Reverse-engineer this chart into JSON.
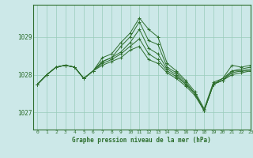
{
  "title": "Graphe pression niveau de la mer (hPa)",
  "bg_color": "#cce8e8",
  "grid_color": "#99ccbb",
  "line_color": "#2d6e2d",
  "xlim": [
    -0.5,
    23
  ],
  "ylim": [
    1026.55,
    1029.85
  ],
  "yticks": [
    1027,
    1028,
    1029
  ],
  "xticks": [
    0,
    1,
    2,
    3,
    4,
    5,
    6,
    7,
    8,
    9,
    10,
    11,
    12,
    13,
    14,
    15,
    16,
    17,
    18,
    19,
    20,
    21,
    22,
    23
  ],
  "series": [
    [
      1027.75,
      1028.0,
      1028.2,
      1028.25,
      1028.2,
      1027.9,
      1028.1,
      1028.45,
      1028.55,
      1028.85,
      1029.1,
      1029.5,
      1029.2,
      1029.0,
      1028.3,
      1028.1,
      1027.85,
      1027.55,
      1027.1,
      1027.8,
      1027.9,
      1028.25,
      1028.2,
      1028.25
    ],
    [
      1027.75,
      1028.0,
      1028.2,
      1028.25,
      1028.2,
      1027.9,
      1028.1,
      1028.35,
      1028.45,
      1028.75,
      1029.0,
      1029.4,
      1028.9,
      1028.8,
      1028.2,
      1028.05,
      1027.8,
      1027.5,
      1027.05,
      1027.75,
      1027.9,
      1028.1,
      1028.15,
      1028.2
    ],
    [
      1027.75,
      1028.0,
      1028.2,
      1028.25,
      1028.2,
      1027.9,
      1028.1,
      1028.35,
      1028.45,
      1028.6,
      1028.85,
      1029.2,
      1028.7,
      1028.55,
      1028.15,
      1028.0,
      1027.75,
      1027.5,
      1027.05,
      1027.75,
      1027.85,
      1028.1,
      1028.1,
      1028.15
    ],
    [
      1027.75,
      1028.0,
      1028.2,
      1028.25,
      1028.2,
      1027.9,
      1028.1,
      1028.3,
      1028.4,
      1028.55,
      1028.75,
      1028.95,
      1028.55,
      1028.4,
      1028.1,
      1027.95,
      1027.75,
      1027.5,
      1027.05,
      1027.75,
      1027.85,
      1028.05,
      1028.1,
      1028.1
    ],
    [
      1027.75,
      1028.0,
      1028.2,
      1028.25,
      1028.2,
      1027.9,
      1028.1,
      1028.25,
      1028.35,
      1028.45,
      1028.65,
      1028.75,
      1028.4,
      1028.3,
      1028.05,
      1027.9,
      1027.7,
      1027.45,
      1027.05,
      1027.75,
      1027.85,
      1028.0,
      1028.05,
      1028.1
    ]
  ]
}
